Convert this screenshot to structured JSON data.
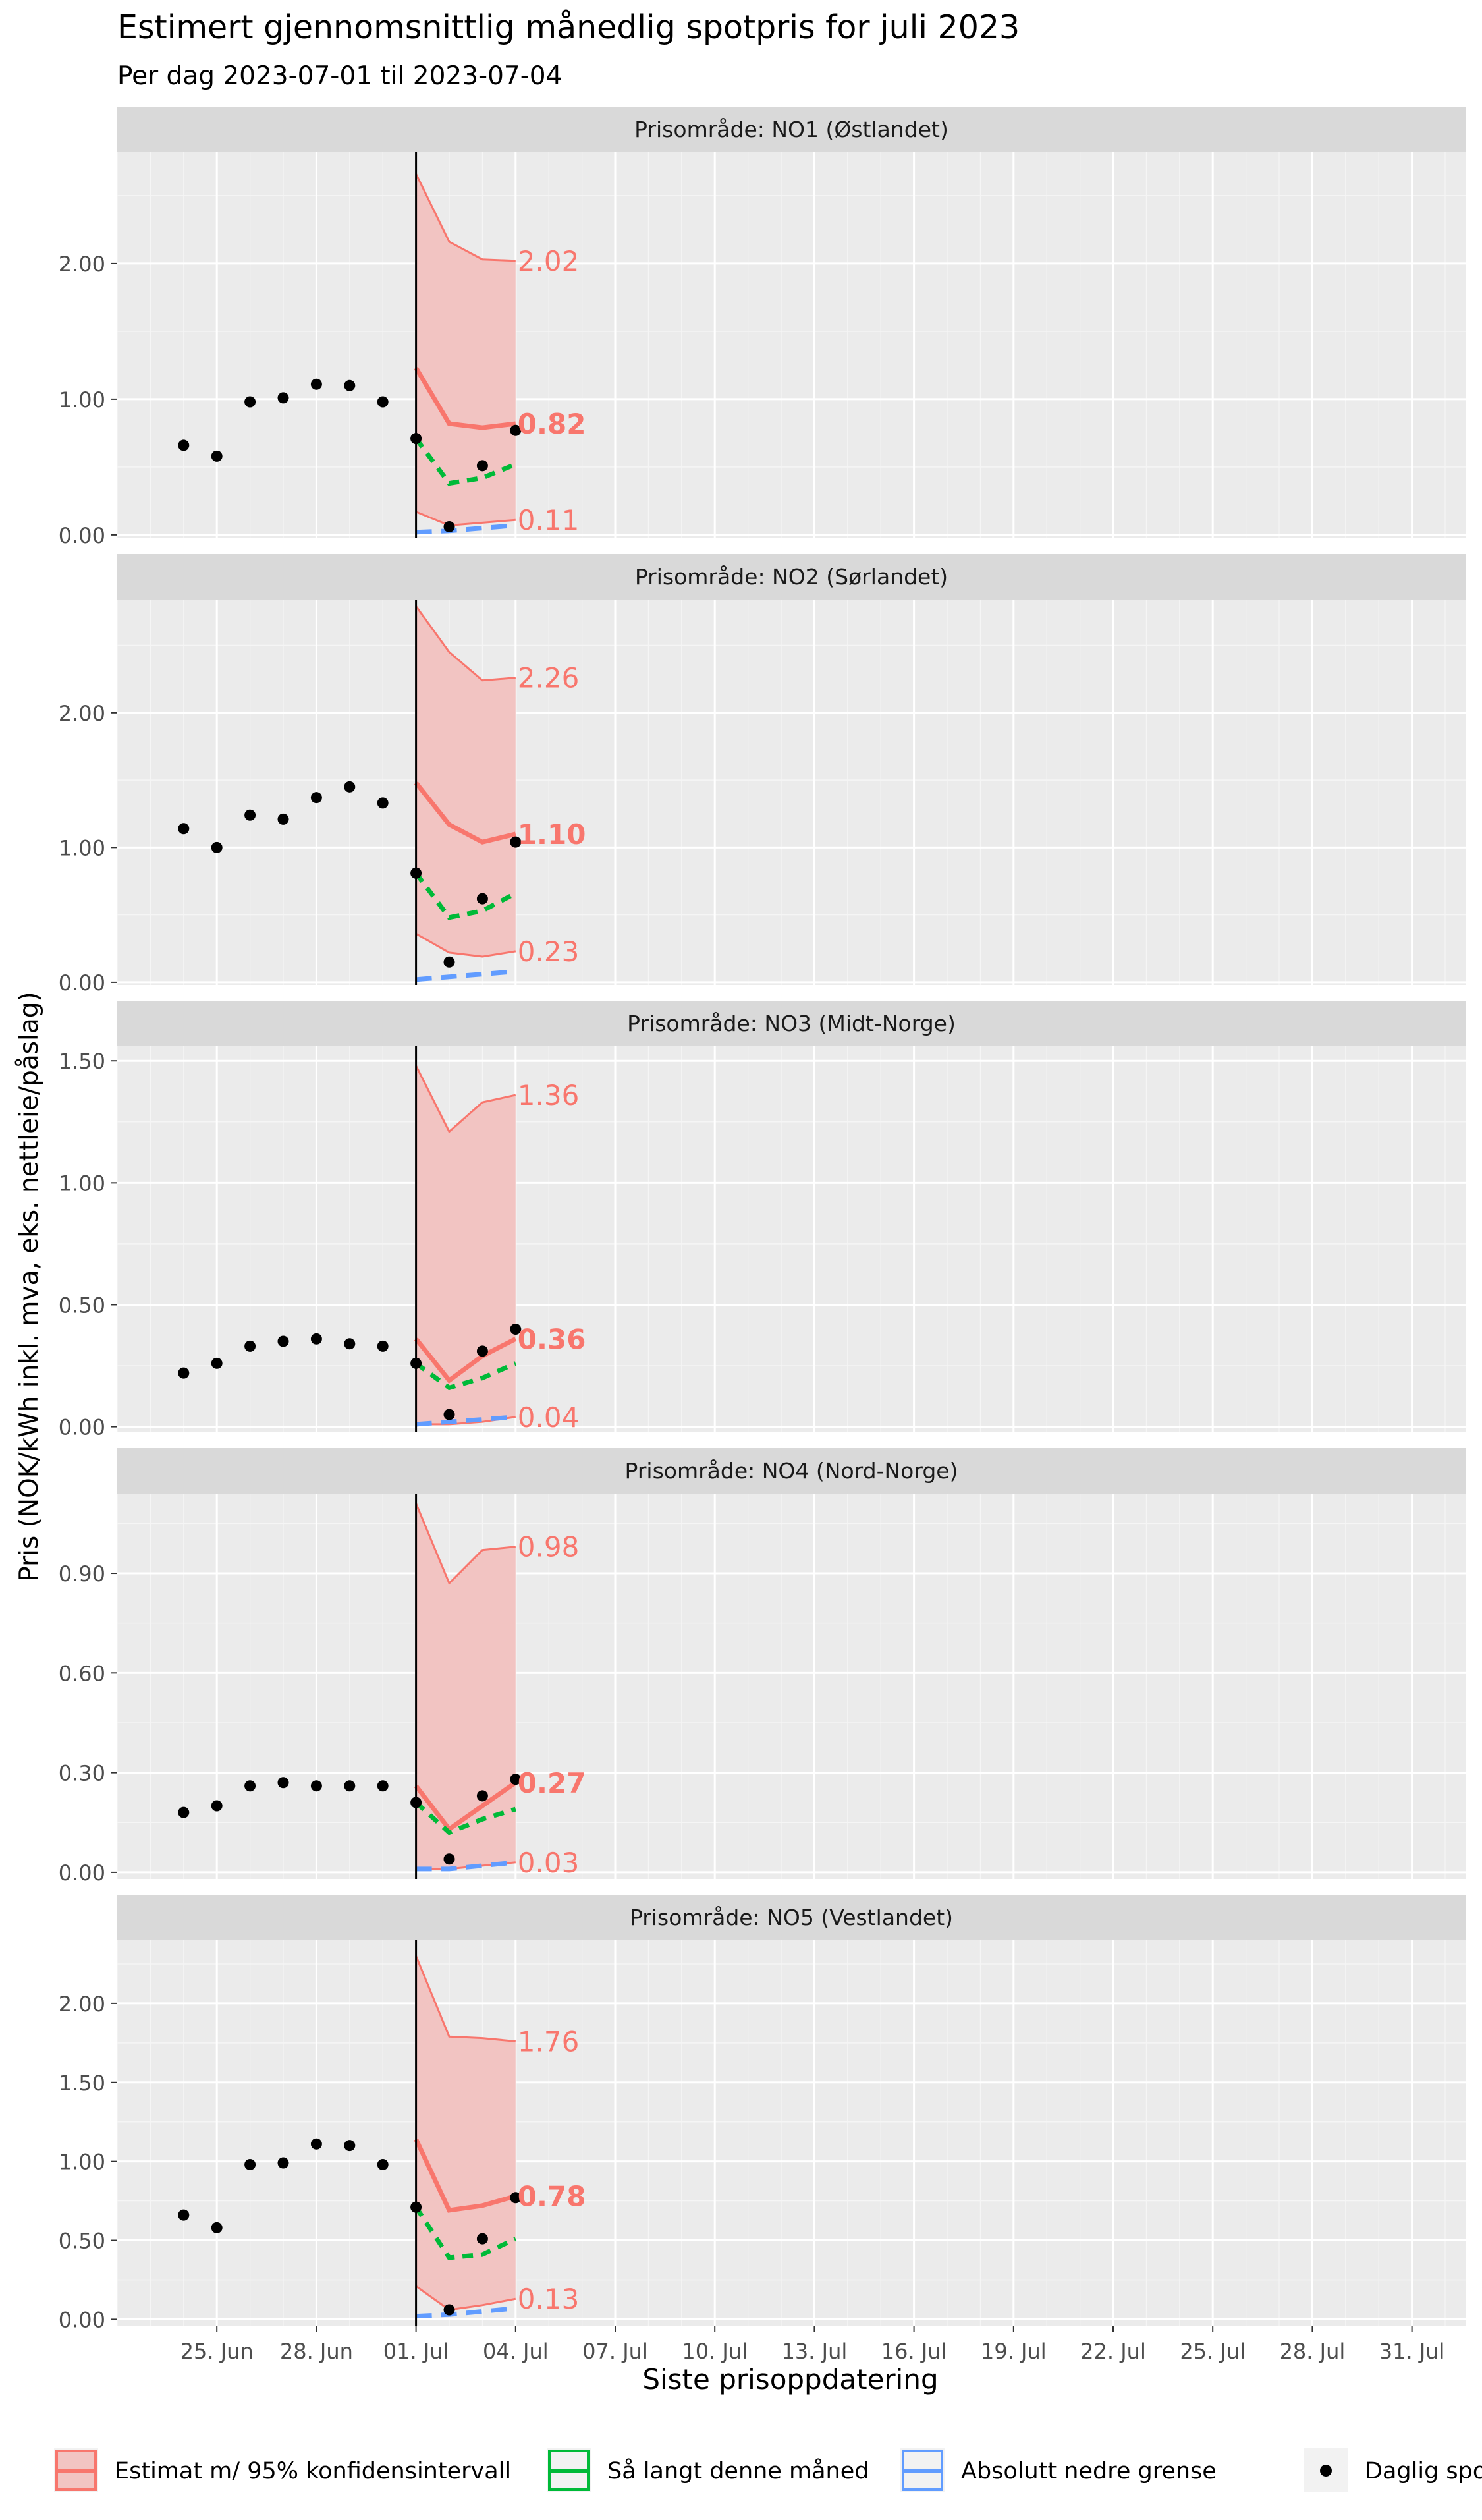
{
  "chart_data": {
    "type": "line",
    "title": "Estimert gjennomsnittlig månedlig spotpris for juli 2023",
    "subtitle": "Per dag 2023-07-01 til 2023-07-04",
    "xlabel": "Siste prisoppdatering",
    "ylabel": "Pris (NOK/kWh inkl. mva, eks. nettleie/påslag)",
    "x_ticks": [
      "25. Jun",
      "28. Jun",
      "01. Jul",
      "04. Jul",
      "07. Jul",
      "10. Jul",
      "13. Jul",
      "16. Jul",
      "19. Jul",
      "22. Jul",
      "25. Jul",
      "28. Jul",
      "31. Jul"
    ],
    "x_range": [
      "2023-06-22",
      "2023-08-01"
    ],
    "vline": "2023-07-01",
    "grid": true,
    "legend_position": "bottom",
    "colors": {
      "estimate": "#F8766D",
      "band_fill": "#F2C4C2",
      "so_far": "#00BA38",
      "lower_bound": "#619CFF",
      "points": "#000000",
      "panel_bg": "#EBEBEB",
      "strip_bg": "#D9D9D9",
      "grid_major": "#FFFFFF"
    },
    "legend": [
      {
        "label": "Estimat m/ 95% konfidensintervall",
        "kind": "estimate"
      },
      {
        "label": "Så langt denne måned",
        "kind": "so_far"
      },
      {
        "label": "Absolutt nedre grense",
        "kind": "lower_bound"
      },
      {
        "label": "Daglig spo",
        "kind": "points"
      }
    ],
    "panels": [
      {
        "strip": "Prisområde: NO1 (Østlandet)",
        "ylim": [
          -0.02,
          2.82
        ],
        "yticks": [
          0,
          1,
          2
        ],
        "yticklabels": [
          "0.00",
          "1.00",
          "2.00"
        ],
        "daily": [
          {
            "x": "2023-06-24",
            "y": 0.66
          },
          {
            "x": "2023-06-25",
            "y": 0.58
          },
          {
            "x": "2023-06-26",
            "y": 0.98
          },
          {
            "x": "2023-06-27",
            "y": 1.01
          },
          {
            "x": "2023-06-28",
            "y": 1.11
          },
          {
            "x": "2023-06-29",
            "y": 1.1
          },
          {
            "x": "2023-06-30",
            "y": 0.98
          },
          {
            "x": "2023-07-01",
            "y": 0.71
          },
          {
            "x": "2023-07-02",
            "y": 0.06
          },
          {
            "x": "2023-07-03",
            "y": 0.51
          },
          {
            "x": "2023-07-04",
            "y": 0.77
          }
        ],
        "estimate": [
          1.23,
          0.82,
          0.79,
          0.82
        ],
        "upper": [
          2.66,
          2.16,
          2.03,
          2.02
        ],
        "lower": [
          0.17,
          0.07,
          0.09,
          0.11
        ],
        "so_far": [
          0.71,
          0.38,
          0.42,
          0.52
        ],
        "lower_bound": [
          0.02,
          0.03,
          0.05,
          0.07
        ],
        "label_upper": "2.02",
        "label_est": "0.82",
        "label_lower": "0.11"
      },
      {
        "strip": "Prisområde: NO2 (Sørlandet)",
        "ylim": [
          -0.02,
          2.84
        ],
        "yticks": [
          0,
          1,
          2
        ],
        "yticklabels": [
          "0.00",
          "1.00",
          "2.00"
        ],
        "daily": [
          {
            "x": "2023-06-24",
            "y": 1.14
          },
          {
            "x": "2023-06-25",
            "y": 1.0
          },
          {
            "x": "2023-06-26",
            "y": 1.24
          },
          {
            "x": "2023-06-27",
            "y": 1.21
          },
          {
            "x": "2023-06-28",
            "y": 1.37
          },
          {
            "x": "2023-06-29",
            "y": 1.45
          },
          {
            "x": "2023-06-30",
            "y": 1.33
          },
          {
            "x": "2023-07-01",
            "y": 0.81
          },
          {
            "x": "2023-07-02",
            "y": 0.15
          },
          {
            "x": "2023-07-03",
            "y": 0.62
          },
          {
            "x": "2023-07-04",
            "y": 1.04
          }
        ],
        "estimate": [
          1.48,
          1.17,
          1.04,
          1.1
        ],
        "upper": [
          2.79,
          2.45,
          2.24,
          2.26
        ],
        "lower": [
          0.36,
          0.22,
          0.19,
          0.23
        ],
        "so_far": [
          0.81,
          0.48,
          0.53,
          0.66
        ],
        "lower_bound": [
          0.02,
          0.04,
          0.06,
          0.08
        ],
        "label_upper": "2.26",
        "label_est": "1.10",
        "label_lower": "0.23"
      },
      {
        "strip": "Prisområde: NO3 (Midt-Norge)",
        "ylim": [
          -0.02,
          1.56
        ],
        "yticks": [
          0,
          0.5,
          1,
          1.5
        ],
        "yticklabels": [
          "0.00",
          "0.50",
          "1.00",
          "1.50"
        ],
        "daily": [
          {
            "x": "2023-06-24",
            "y": 0.22
          },
          {
            "x": "2023-06-25",
            "y": 0.26
          },
          {
            "x": "2023-06-26",
            "y": 0.33
          },
          {
            "x": "2023-06-27",
            "y": 0.35
          },
          {
            "x": "2023-06-28",
            "y": 0.36
          },
          {
            "x": "2023-06-29",
            "y": 0.34
          },
          {
            "x": "2023-06-30",
            "y": 0.33
          },
          {
            "x": "2023-07-01",
            "y": 0.26
          },
          {
            "x": "2023-07-02",
            "y": 0.05
          },
          {
            "x": "2023-07-03",
            "y": 0.31
          },
          {
            "x": "2023-07-04",
            "y": 0.4
          }
        ],
        "estimate": [
          0.36,
          0.19,
          0.29,
          0.36
        ],
        "upper": [
          1.48,
          1.21,
          1.33,
          1.36
        ],
        "lower": [
          0.01,
          0.01,
          0.02,
          0.04
        ],
        "so_far": [
          0.26,
          0.16,
          0.2,
          0.26
        ],
        "lower_bound": [
          0.01,
          0.02,
          0.03,
          0.04
        ],
        "label_upper": "1.36",
        "label_est": "0.36",
        "label_lower": "0.04"
      },
      {
        "strip": "Prisområde: NO4 (Nord-Norge)",
        "ylim": [
          -0.02,
          1.14
        ],
        "yticks": [
          0,
          0.3,
          0.6,
          0.9
        ],
        "yticklabels": [
          "0.00",
          "0.30",
          "0.60",
          "0.90"
        ],
        "daily": [
          {
            "x": "2023-06-24",
            "y": 0.18
          },
          {
            "x": "2023-06-25",
            "y": 0.2
          },
          {
            "x": "2023-06-26",
            "y": 0.26
          },
          {
            "x": "2023-06-27",
            "y": 0.27
          },
          {
            "x": "2023-06-28",
            "y": 0.26
          },
          {
            "x": "2023-06-29",
            "y": 0.26
          },
          {
            "x": "2023-06-30",
            "y": 0.26
          },
          {
            "x": "2023-07-01",
            "y": 0.21
          },
          {
            "x": "2023-07-02",
            "y": 0.04
          },
          {
            "x": "2023-07-03",
            "y": 0.23
          },
          {
            "x": "2023-07-04",
            "y": 0.28
          }
        ],
        "estimate": [
          0.26,
          0.13,
          0.2,
          0.27
        ],
        "upper": [
          1.11,
          0.87,
          0.97,
          0.98
        ],
        "lower": [
          0.01,
          0.01,
          0.02,
          0.03
        ],
        "so_far": [
          0.21,
          0.12,
          0.16,
          0.19
        ],
        "lower_bound": [
          0.01,
          0.01,
          0.02,
          0.03
        ],
        "label_upper": "0.98",
        "label_est": "0.27",
        "label_lower": "0.03"
      },
      {
        "strip": "Prisområde: NO5 (Vestlandet)",
        "ylim": [
          -0.04,
          2.4
        ],
        "yticks": [
          0,
          0.5,
          1,
          1.5,
          2
        ],
        "yticklabels": [
          "0.00",
          "0.50",
          "1.00",
          "1.50",
          "2.00"
        ],
        "daily": [
          {
            "x": "2023-06-24",
            "y": 0.66
          },
          {
            "x": "2023-06-25",
            "y": 0.58
          },
          {
            "x": "2023-06-26",
            "y": 0.98
          },
          {
            "x": "2023-06-27",
            "y": 0.99
          },
          {
            "x": "2023-06-28",
            "y": 1.11
          },
          {
            "x": "2023-06-29",
            "y": 1.1
          },
          {
            "x": "2023-06-30",
            "y": 0.98
          },
          {
            "x": "2023-07-01",
            "y": 0.71
          },
          {
            "x": "2023-07-02",
            "y": 0.06
          },
          {
            "x": "2023-07-03",
            "y": 0.51
          },
          {
            "x": "2023-07-04",
            "y": 0.77
          }
        ],
        "estimate": [
          1.14,
          0.69,
          0.72,
          0.78
        ],
        "upper": [
          2.3,
          1.79,
          1.78,
          1.76
        ],
        "lower": [
          0.21,
          0.06,
          0.09,
          0.13
        ],
        "so_far": [
          0.71,
          0.39,
          0.41,
          0.51
        ],
        "lower_bound": [
          0.02,
          0.03,
          0.05,
          0.07
        ],
        "label_upper": "1.76",
        "label_est": "0.78",
        "label_lower": "0.13"
      }
    ],
    "estimate_x": [
      "2023-07-01",
      "2023-07-02",
      "2023-07-03",
      "2023-07-04"
    ]
  }
}
